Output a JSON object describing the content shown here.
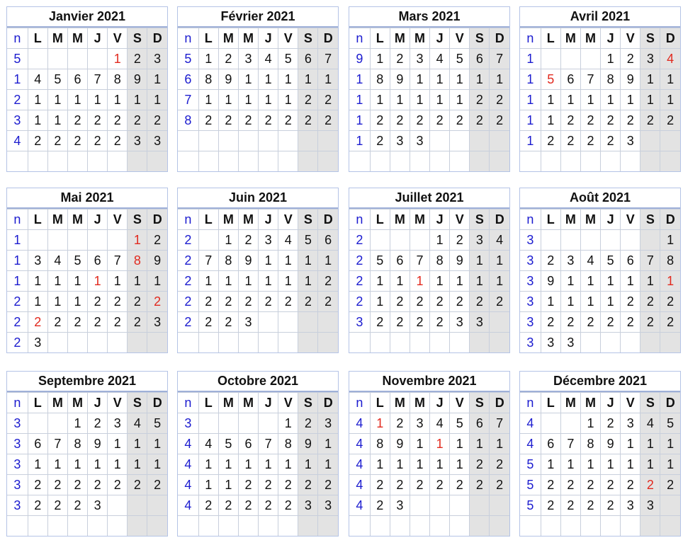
{
  "colors": {
    "week_number": "#1c1ccf",
    "holiday": "#e12a1f",
    "weekend_bg": "#e3e3e3",
    "border": "#b4c3e6"
  },
  "header": {
    "week": "n",
    "days": [
      "L",
      "M",
      "M",
      "J",
      "V",
      "S",
      "D"
    ]
  },
  "months": [
    {
      "title": "Janvier 2021",
      "weeks": [
        "5",
        "1",
        "2",
        "3",
        "4",
        ""
      ],
      "rows": [
        [
          "",
          "",
          "",
          "",
          "1",
          "2",
          "3"
        ],
        [
          "4",
          "5",
          "6",
          "7",
          "8",
          "9",
          "1"
        ],
        [
          "1",
          "1",
          "1",
          "1",
          "1",
          "1",
          "1"
        ],
        [
          "1",
          "1",
          "2",
          "2",
          "2",
          "2",
          "2"
        ],
        [
          "2",
          "2",
          "2",
          "2",
          "2",
          "3",
          "3"
        ],
        [
          "",
          "",
          "",
          "",
          "",
          "",
          ""
        ]
      ],
      "red": [
        [
          0,
          4
        ]
      ]
    },
    {
      "title": "Février 2021",
      "weeks": [
        "5",
        "6",
        "7",
        "8",
        "",
        ""
      ],
      "rows": [
        [
          "1",
          "2",
          "3",
          "4",
          "5",
          "6",
          "7"
        ],
        [
          "8",
          "9",
          "1",
          "1",
          "1",
          "1",
          "1"
        ],
        [
          "1",
          "1",
          "1",
          "1",
          "1",
          "2",
          "2"
        ],
        [
          "2",
          "2",
          "2",
          "2",
          "2",
          "2",
          "2"
        ],
        [
          "",
          "",
          "",
          "",
          "",
          "",
          ""
        ],
        [
          "",
          "",
          "",
          "",
          "",
          "",
          ""
        ]
      ],
      "red": []
    },
    {
      "title": "Mars 2021",
      "weeks": [
        "9",
        "1",
        "1",
        "1",
        "1",
        ""
      ],
      "rows": [
        [
          "1",
          "2",
          "3",
          "4",
          "5",
          "6",
          "7"
        ],
        [
          "8",
          "9",
          "1",
          "1",
          "1",
          "1",
          "1"
        ],
        [
          "1",
          "1",
          "1",
          "1",
          "1",
          "2",
          "2"
        ],
        [
          "2",
          "2",
          "2",
          "2",
          "2",
          "2",
          "2"
        ],
        [
          "2",
          "3",
          "3",
          "",
          "",
          "",
          ""
        ],
        [
          "",
          "",
          "",
          "",
          "",
          "",
          ""
        ]
      ],
      "red": []
    },
    {
      "title": "Avril 2021",
      "weeks": [
        "1",
        "1",
        "1",
        "1",
        "1",
        ""
      ],
      "rows": [
        [
          "",
          "",
          "",
          "1",
          "2",
          "3",
          "4"
        ],
        [
          "5",
          "6",
          "7",
          "8",
          "9",
          "1",
          "1"
        ],
        [
          "1",
          "1",
          "1",
          "1",
          "1",
          "1",
          "1"
        ],
        [
          "1",
          "2",
          "2",
          "2",
          "2",
          "2",
          "2"
        ],
        [
          "2",
          "2",
          "2",
          "2",
          "3",
          "",
          ""
        ],
        [
          "",
          "",
          "",
          "",
          "",
          "",
          ""
        ]
      ],
      "red": [
        [
          0,
          6
        ],
        [
          1,
          0
        ]
      ]
    },
    {
      "title": "Mai 2021",
      "weeks": [
        "1",
        "1",
        "1",
        "2",
        "2",
        "2"
      ],
      "rows": [
        [
          "",
          "",
          "",
          "",
          "",
          "1",
          "2"
        ],
        [
          "3",
          "4",
          "5",
          "6",
          "7",
          "8",
          "9"
        ],
        [
          "1",
          "1",
          "1",
          "1",
          "1",
          "1",
          "1"
        ],
        [
          "1",
          "1",
          "1",
          "2",
          "2",
          "2",
          "2"
        ],
        [
          "2",
          "2",
          "2",
          "2",
          "2",
          "2",
          "3"
        ],
        [
          "3",
          "",
          "",
          "",
          "",
          "",
          ""
        ]
      ],
      "red": [
        [
          0,
          5
        ],
        [
          1,
          5
        ],
        [
          2,
          3
        ],
        [
          3,
          6
        ],
        [
          4,
          0
        ]
      ]
    },
    {
      "title": "Juin 2021",
      "weeks": [
        "2",
        "2",
        "2",
        "2",
        "2",
        ""
      ],
      "rows": [
        [
          "",
          "1",
          "2",
          "3",
          "4",
          "5",
          "6"
        ],
        [
          "7",
          "8",
          "9",
          "1",
          "1",
          "1",
          "1"
        ],
        [
          "1",
          "1",
          "1",
          "1",
          "1",
          "1",
          "2"
        ],
        [
          "2",
          "2",
          "2",
          "2",
          "2",
          "2",
          "2"
        ],
        [
          "2",
          "2",
          "3",
          "",
          "",
          "",
          ""
        ],
        [
          "",
          "",
          "",
          "",
          "",
          "",
          ""
        ]
      ],
      "red": []
    },
    {
      "title": "Juillet 2021",
      "weeks": [
        "2",
        "2",
        "2",
        "2",
        "3",
        ""
      ],
      "rows": [
        [
          "",
          "",
          "",
          "1",
          "2",
          "3",
          "4"
        ],
        [
          "5",
          "6",
          "7",
          "8",
          "9",
          "1",
          "1"
        ],
        [
          "1",
          "1",
          "1",
          "1",
          "1",
          "1",
          "1"
        ],
        [
          "1",
          "2",
          "2",
          "2",
          "2",
          "2",
          "2"
        ],
        [
          "2",
          "2",
          "2",
          "2",
          "3",
          "3",
          ""
        ],
        [
          "",
          "",
          "",
          "",
          "",
          "",
          ""
        ]
      ],
      "red": [
        [
          2,
          2
        ]
      ]
    },
    {
      "title": "Août 2021",
      "weeks": [
        "3",
        "3",
        "3",
        "3",
        "3",
        "3"
      ],
      "rows": [
        [
          "",
          "",
          "",
          "",
          "",
          "",
          "1"
        ],
        [
          "2",
          "3",
          "4",
          "5",
          "6",
          "7",
          "8"
        ],
        [
          "9",
          "1",
          "1",
          "1",
          "1",
          "1",
          "1"
        ],
        [
          "1",
          "1",
          "1",
          "1",
          "2",
          "2",
          "2"
        ],
        [
          "2",
          "2",
          "2",
          "2",
          "2",
          "2",
          "2"
        ],
        [
          "3",
          "3",
          "",
          "",
          "",
          "",
          ""
        ]
      ],
      "red": [
        [
          2,
          6
        ]
      ]
    },
    {
      "title": "Septembre 2021",
      "weeks": [
        "3",
        "3",
        "3",
        "3",
        "3",
        ""
      ],
      "rows": [
        [
          "",
          "",
          "1",
          "2",
          "3",
          "4",
          "5"
        ],
        [
          "6",
          "7",
          "8",
          "9",
          "1",
          "1",
          "1"
        ],
        [
          "1",
          "1",
          "1",
          "1",
          "1",
          "1",
          "1"
        ],
        [
          "2",
          "2",
          "2",
          "2",
          "2",
          "2",
          "2"
        ],
        [
          "2",
          "2",
          "2",
          "3",
          "",
          "",
          ""
        ],
        [
          "",
          "",
          "",
          "",
          "",
          "",
          ""
        ]
      ],
      "red": []
    },
    {
      "title": "Octobre 2021",
      "weeks": [
        "3",
        "4",
        "4",
        "4",
        "4",
        ""
      ],
      "rows": [
        [
          "",
          "",
          "",
          "",
          "1",
          "2",
          "3"
        ],
        [
          "4",
          "5",
          "6",
          "7",
          "8",
          "9",
          "1"
        ],
        [
          "1",
          "1",
          "1",
          "1",
          "1",
          "1",
          "1"
        ],
        [
          "1",
          "1",
          "2",
          "2",
          "2",
          "2",
          "2"
        ],
        [
          "2",
          "2",
          "2",
          "2",
          "2",
          "3",
          "3"
        ],
        [
          "",
          "",
          "",
          "",
          "",
          "",
          ""
        ]
      ],
      "red": []
    },
    {
      "title": "Novembre 2021",
      "weeks": [
        "4",
        "4",
        "4",
        "4",
        "4",
        ""
      ],
      "rows": [
        [
          "1",
          "2",
          "3",
          "4",
          "5",
          "6",
          "7"
        ],
        [
          "8",
          "9",
          "1",
          "1",
          "1",
          "1",
          "1"
        ],
        [
          "1",
          "1",
          "1",
          "1",
          "1",
          "2",
          "2"
        ],
        [
          "2",
          "2",
          "2",
          "2",
          "2",
          "2",
          "2"
        ],
        [
          "2",
          "3",
          "",
          "",
          "",
          "",
          ""
        ],
        [
          "",
          "",
          "",
          "",
          "",
          "",
          ""
        ]
      ],
      "red": [
        [
          0,
          0
        ],
        [
          1,
          3
        ]
      ]
    },
    {
      "title": "Décembre 2021",
      "weeks": [
        "4",
        "4",
        "5",
        "5",
        "5",
        ""
      ],
      "rows": [
        [
          "",
          "",
          "1",
          "2",
          "3",
          "4",
          "5"
        ],
        [
          "6",
          "7",
          "8",
          "9",
          "1",
          "1",
          "1"
        ],
        [
          "1",
          "1",
          "1",
          "1",
          "1",
          "1",
          "1"
        ],
        [
          "2",
          "2",
          "2",
          "2",
          "2",
          "2",
          "2"
        ],
        [
          "2",
          "2",
          "2",
          "2",
          "3",
          "3",
          ""
        ],
        [
          "",
          "",
          "",
          "",
          "",
          "",
          ""
        ]
      ],
      "red": [
        [
          3,
          5
        ]
      ]
    }
  ]
}
